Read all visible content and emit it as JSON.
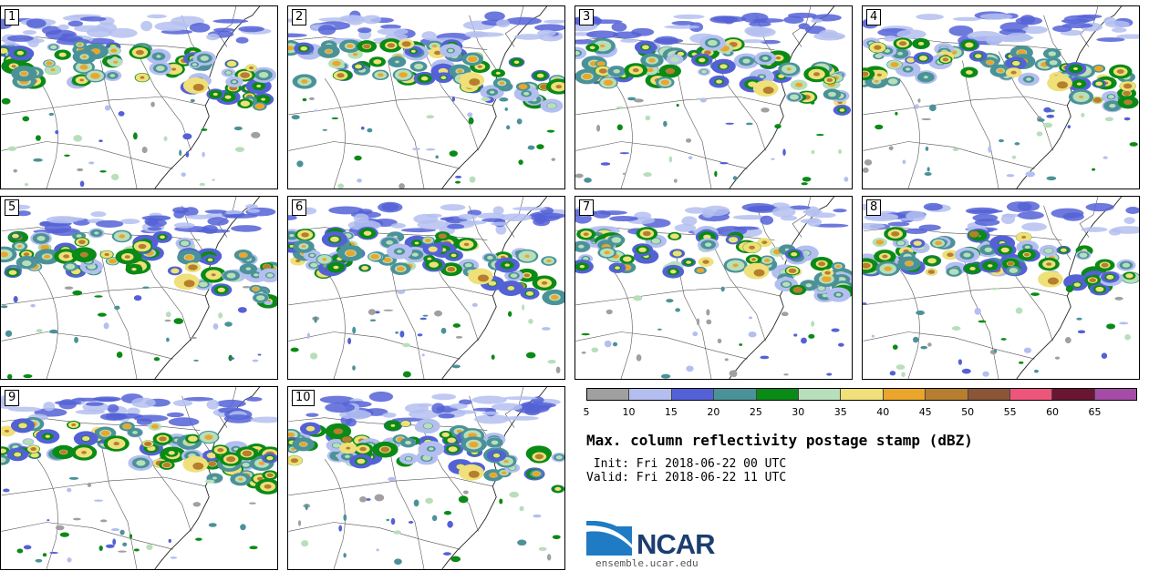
{
  "panels": [
    {
      "label": "1"
    },
    {
      "label": "2"
    },
    {
      "label": "3"
    },
    {
      "label": "4"
    },
    {
      "label": "5"
    },
    {
      "label": "6"
    },
    {
      "label": "7"
    },
    {
      "label": "8"
    },
    {
      "label": "9"
    },
    {
      "label": "10"
    }
  ],
  "colorbar": {
    "ticks": [
      "5",
      "10",
      "15",
      "20",
      "25",
      "30",
      "35",
      "40",
      "45",
      "50",
      "55",
      "60",
      "65"
    ],
    "colors": [
      "#a0a0a0",
      "#b4bff0",
      "#5461d6",
      "#4b9298",
      "#0a8a16",
      "#b7dfba",
      "#efe07a",
      "#eaa62a",
      "#b67e2e",
      "#8a5637",
      "#ed557a",
      "#6a1532",
      "#a54ca6"
    ]
  },
  "title": "Max. column reflectivity postage stamp (dBZ)",
  "init": " Init: Fri 2018-06-22 00 UTC",
  "valid": "Valid: Fri 2018-06-22 11 UTC",
  "logo": {
    "name": "NCAR",
    "url": "ensemble.ucar.edu"
  }
}
